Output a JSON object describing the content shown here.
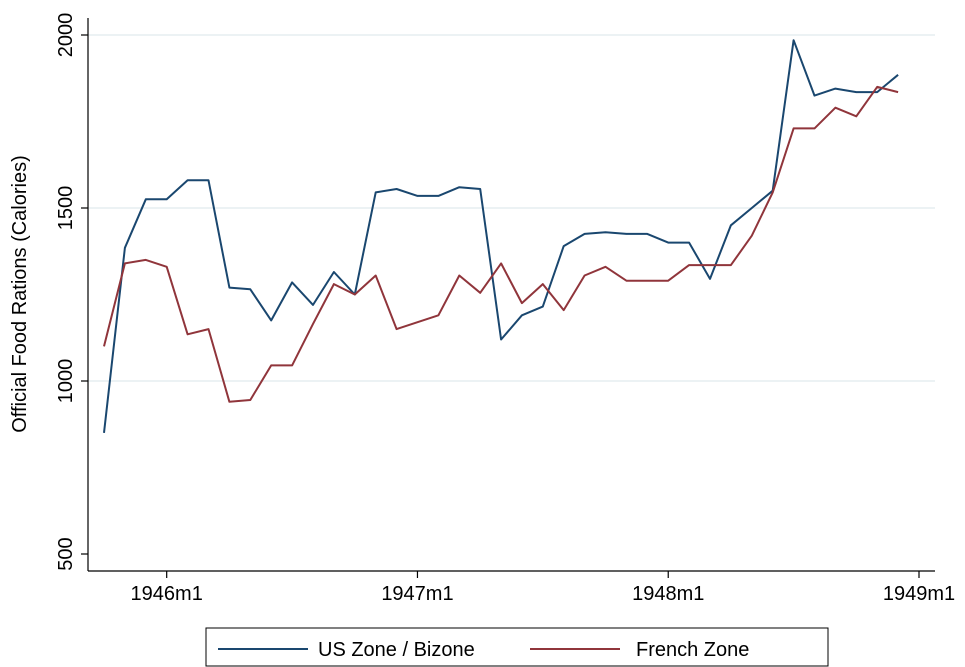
{
  "chart_data": {
    "type": "line",
    "ylabel": "Official Food Rations (Calories)",
    "xlabel": "",
    "ylim": [
      500,
      2000
    ],
    "xlim": [
      "1945m10",
      "1949m1"
    ],
    "y_ticks": [
      500,
      1000,
      1500,
      2000
    ],
    "x_ticks": [
      "1946m1",
      "1947m1",
      "1948m1",
      "1949m1"
    ],
    "grid": true,
    "legend_position": "bottom",
    "x": [
      "1945m10",
      "1945m11",
      "1945m12",
      "1946m1",
      "1946m2",
      "1946m3",
      "1946m4",
      "1946m5",
      "1946m6",
      "1946m7",
      "1946m8",
      "1946m9",
      "1946m10",
      "1946m11",
      "1946m12",
      "1947m1",
      "1947m2",
      "1947m3",
      "1947m4",
      "1947m5",
      "1947m6",
      "1947m7",
      "1947m8",
      "1947m9",
      "1947m10",
      "1947m11",
      "1947m12",
      "1948m1",
      "1948m2",
      "1948m3",
      "1948m4",
      "1948m5",
      "1948m6",
      "1948m7",
      "1948m8",
      "1948m9",
      "1948m10",
      "1948m11",
      "1948m12"
    ],
    "series": [
      {
        "name": "US Zone / Bizone",
        "color": "#1a476f",
        "values": [
          850,
          1385,
          1525,
          1525,
          1580,
          1580,
          1270,
          1265,
          1175,
          1285,
          1220,
          1315,
          1250,
          1545,
          1555,
          1535,
          1535,
          1560,
          1555,
          1120,
          1190,
          1215,
          1390,
          1425,
          1430,
          1425,
          1425,
          1400,
          1400,
          1295,
          1450,
          1500,
          1550,
          1985,
          1825,
          1845,
          1835,
          1835,
          1885
        ]
      },
      {
        "name": "French Zone",
        "color": "#90353b",
        "values": [
          1100,
          1340,
          1350,
          1330,
          1135,
          1150,
          940,
          945,
          1045,
          1045,
          1165,
          1280,
          1250,
          1305,
          1150,
          1170,
          1190,
          1305,
          1255,
          1340,
          1225,
          1280,
          1205,
          1305,
          1330,
          1290,
          1290,
          1290,
          1335,
          1335,
          1335,
          1420,
          1545,
          1730,
          1730,
          1790,
          1765,
          1850,
          1835
        ]
      }
    ]
  }
}
